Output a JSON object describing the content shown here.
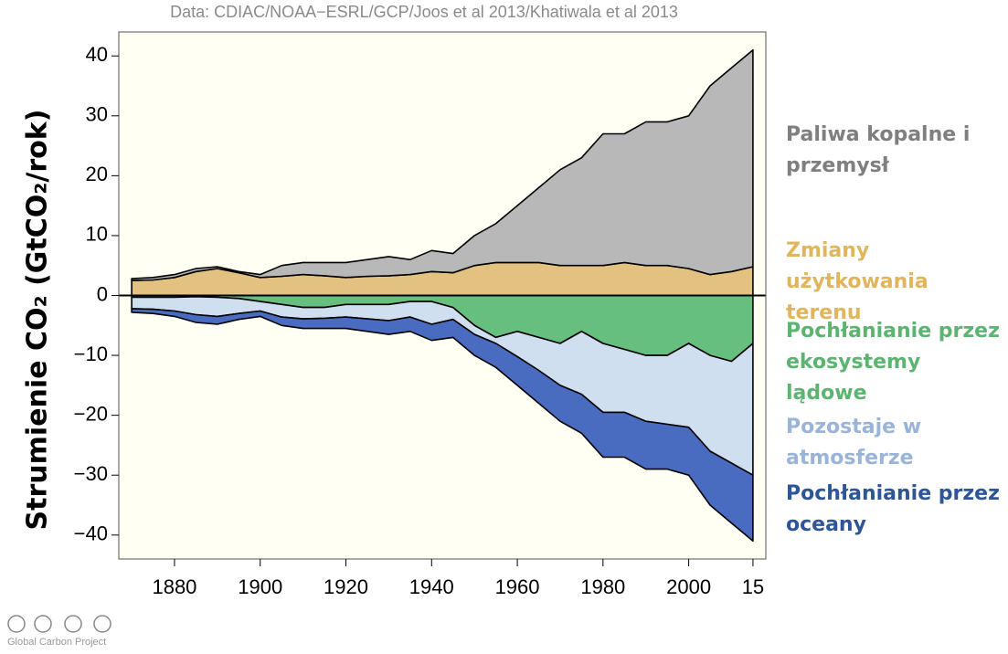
{
  "chart_data": {
    "type": "stacked_area",
    "source": "Data: CDIAC/NOAA−ESRL/GCP/Joos et al 2013/Khatiwala et al 2013",
    "y_label": "Strumienie CO₂ (GtCO₂/rok)",
    "footer": "Global Carbon Project",
    "x": [
      1870,
      1875,
      1880,
      1885,
      1890,
      1895,
      1900,
      1905,
      1910,
      1915,
      1920,
      1925,
      1930,
      1935,
      1940,
      1945,
      1950,
      1955,
      1960,
      1965,
      1970,
      1975,
      1980,
      1985,
      1990,
      1995,
      2000,
      2005,
      2010,
      2015
    ],
    "series": [
      {
        "name": "Zmiany użytkowania terenu",
        "color": "#e3c281",
        "label_color": "#e0b55c",
        "values": [
          2.5,
          2.6,
          3,
          4,
          4.5,
          3.8,
          3,
          3.2,
          3.5,
          3.3,
          3,
          3.2,
          3.3,
          3.5,
          4,
          3.8,
          5,
          5.5,
          5.5,
          5.5,
          5,
          5,
          5,
          5.5,
          5,
          5,
          4.5,
          3.5,
          4,
          4.8
        ]
      },
      {
        "name": "Paliwa kopalne i przemysł",
        "color": "#b8b8b8",
        "label_color": "#7f7f7f",
        "values": [
          0.3,
          0.4,
          0.5,
          0.5,
          0.3,
          0.2,
          0.5,
          1.8,
          2,
          2.2,
          2.5,
          2.8,
          3.2,
          2.5,
          3.5,
          3.2,
          5,
          6.5,
          9.5,
          12.5,
          16,
          18,
          22,
          21.5,
          24,
          24,
          25.5,
          31.5,
          34,
          36.2
        ]
      },
      {
        "name": "Pochłanianie przez ekosystemy lądowe",
        "color": "#66bf7e",
        "label_color": "#5bb470",
        "values": [
          -0.3,
          -0.3,
          -0.3,
          -0.2,
          -0.3,
          -0.5,
          -1,
          -1.5,
          -2,
          -2,
          -1.5,
          -1.5,
          -1.5,
          -1,
          -1,
          -2,
          -5,
          -7,
          -6,
          -7,
          -8,
          -6,
          -8,
          -9,
          -10,
          -10,
          -8,
          -10,
          -11,
          -8
        ]
      },
      {
        "name": "Pozostaje w atmosferze",
        "color": "#cfdff0",
        "label_color": "#9ab4d8",
        "values": [
          -1.9,
          -2,
          -2.3,
          -3,
          -3.2,
          -2.5,
          -1.6,
          -2.1,
          -1.9,
          -1.8,
          -2.1,
          -2.4,
          -2.7,
          -2.6,
          -3.8,
          -2,
          -1.5,
          -1,
          -4.2,
          -5.5,
          -7,
          -10.5,
          -11.5,
          -10.5,
          -11,
          -11.5,
          -14,
          -16,
          -17,
          -22
        ]
      },
      {
        "name": "Pochłanianie przez oceany",
        "color": "#4a6cc0",
        "label_color": "#2e5597",
        "values": [
          -0.6,
          -0.7,
          -0.9,
          -1.3,
          -1.3,
          -1,
          -0.9,
          -1.4,
          -1.6,
          -1.7,
          -1.9,
          -2.1,
          -2.3,
          -2.4,
          -2.7,
          -3,
          -3.5,
          -4,
          -4.8,
          -5.5,
          -6,
          -6.5,
          -7.5,
          -7.5,
          -8,
          -7.5,
          -8,
          -9,
          -10,
          -11
        ]
      }
    ],
    "xlim": [
      1867,
      2018
    ],
    "xticks": [
      1880,
      1900,
      1920,
      1940,
      1960,
      1980,
      2000,
      {
        "value": 2015,
        "label": "15"
      }
    ],
    "ylim": [
      -44,
      44
    ],
    "yticks": [
      {
        "value": -40,
        "label": "−40"
      },
      {
        "value": -30,
        "label": "−30"
      },
      {
        "value": -20,
        "label": "−20"
      },
      {
        "value": -10,
        "label": "−10"
      },
      0,
      10,
      20,
      30,
      40
    ]
  }
}
